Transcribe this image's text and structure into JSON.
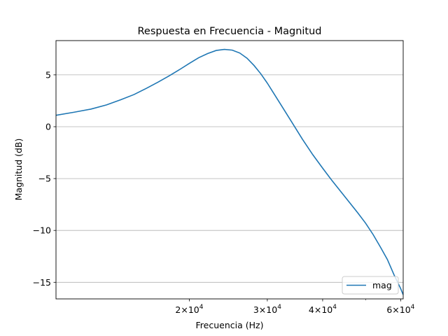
{
  "chart_data": {
    "type": "line",
    "title": "Respuesta en Frecuencia - Magnitud",
    "xlabel": "Frecuencia (Hz)",
    "ylabel": "Magnitud (dB)",
    "xscale": "log",
    "xlim": [
      10000,
      60800
    ],
    "ylim": [
      -16.6,
      8.3
    ],
    "x_ticks": [
      {
        "value": 20000,
        "base": "2",
        "exp": "4"
      },
      {
        "value": 30000,
        "base": "3",
        "exp": "4"
      },
      {
        "value": 40000,
        "base": "4",
        "exp": "4"
      },
      {
        "value": 60000,
        "base": "6",
        "exp": "4"
      }
    ],
    "x_minor_ticks": [
      50000
    ],
    "y_ticks": [
      {
        "value": 5,
        "label": "5"
      },
      {
        "value": 0,
        "label": "0"
      },
      {
        "value": -5,
        "label": "−5"
      },
      {
        "value": -10,
        "label": "−10"
      },
      {
        "value": -15,
        "label": "−15"
      }
    ],
    "grid": "y-major",
    "legend": {
      "position": "lower-right",
      "entries": [
        "mag"
      ]
    },
    "series": [
      {
        "name": "mag",
        "color": "#1f77b4",
        "points": [
          [
            10000,
            1.1
          ],
          [
            11000,
            1.4
          ],
          [
            12000,
            1.7
          ],
          [
            13000,
            2.1
          ],
          [
            14000,
            2.6
          ],
          [
            15000,
            3.1
          ],
          [
            16000,
            3.7
          ],
          [
            17000,
            4.3
          ],
          [
            18000,
            4.9
          ],
          [
            19000,
            5.5
          ],
          [
            20000,
            6.1
          ],
          [
            21000,
            6.65
          ],
          [
            22000,
            7.05
          ],
          [
            23000,
            7.35
          ],
          [
            24000,
            7.45
          ],
          [
            25000,
            7.38
          ],
          [
            26000,
            7.1
          ],
          [
            27000,
            6.6
          ],
          [
            28000,
            5.9
          ],
          [
            29000,
            5.1
          ],
          [
            30000,
            4.2
          ],
          [
            32000,
            2.3
          ],
          [
            34000,
            0.5
          ],
          [
            36000,
            -1.2
          ],
          [
            38000,
            -2.7
          ],
          [
            40000,
            -4.0
          ],
          [
            42000,
            -5.2
          ],
          [
            45000,
            -6.8
          ],
          [
            48000,
            -8.3
          ],
          [
            50000,
            -9.3
          ],
          [
            52000,
            -10.4
          ],
          [
            54000,
            -11.6
          ],
          [
            56000,
            -12.8
          ],
          [
            58000,
            -14.3
          ],
          [
            60000,
            -15.6
          ],
          [
            60800,
            -16.2
          ]
        ]
      }
    ]
  }
}
